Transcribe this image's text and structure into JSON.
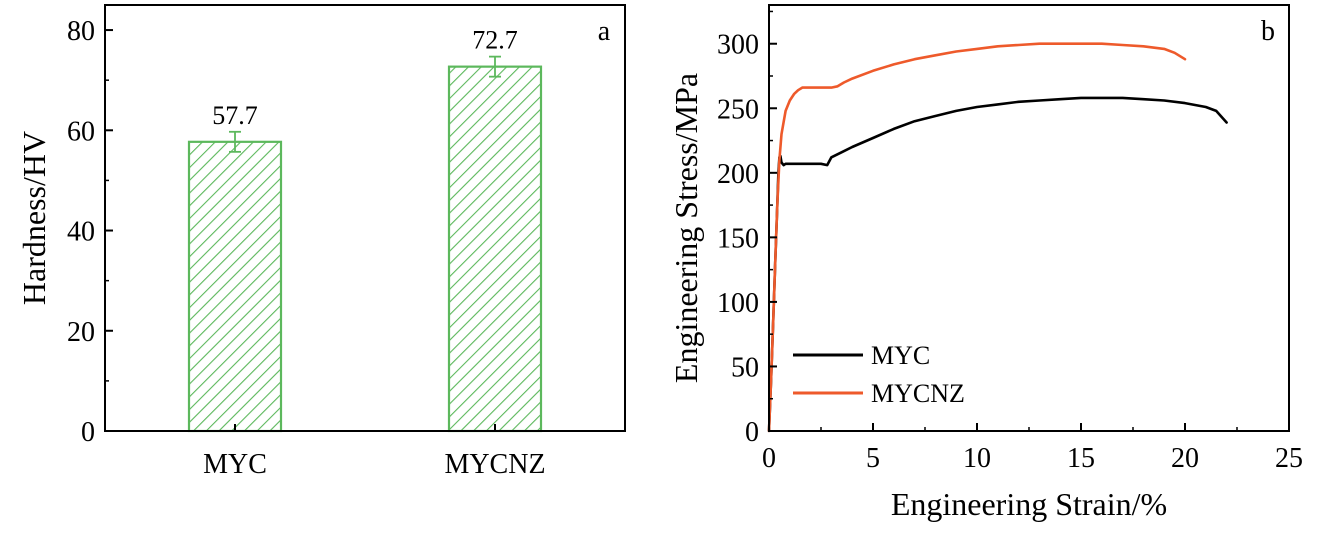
{
  "chart_data": [
    {
      "type": "bar",
      "panel_label": "a",
      "categories": [
        "MYC",
        "MYCNZ"
      ],
      "values": [
        57.7,
        72.7
      ],
      "errors": [
        2.0,
        2.0
      ],
      "data_labels": [
        "57.7",
        "72.7"
      ],
      "ylabel": "Hardness/HV",
      "ylim": [
        0,
        85
      ],
      "yticks": [
        0,
        20,
        40,
        60,
        80
      ],
      "ytick_labels": [
        "0",
        "20",
        "40",
        "60",
        "80"
      ],
      "bar_color": "#5cb85c",
      "bar_fill": "diagonal hatch"
    },
    {
      "type": "line",
      "panel_label": "b",
      "xlabel": "Engineering Strain/%",
      "ylabel": "Engineering Stress/MPa",
      "xlim": [
        0,
        25
      ],
      "ylim": [
        0,
        330
      ],
      "xticks": [
        0,
        5,
        10,
        15,
        20,
        25
      ],
      "xtick_labels": [
        "0",
        "5",
        "10",
        "15",
        "20",
        "25"
      ],
      "yticks": [
        0,
        50,
        100,
        150,
        200,
        250,
        300
      ],
      "ytick_labels": [
        "0",
        "50",
        "100",
        "150",
        "200",
        "250",
        "300"
      ],
      "legend_position": "bottom-left",
      "series": [
        {
          "name": "MYC",
          "color": "#000000",
          "x": [
            0,
            0.1,
            0.2,
            0.3,
            0.4,
            0.45,
            0.5,
            0.55,
            0.6,
            0.7,
            0.8,
            1.0,
            1.5,
            2.0,
            2.5,
            2.8,
            3.0,
            3.5,
            4,
            5,
            6,
            7,
            8,
            9,
            10,
            11,
            12,
            13,
            14,
            15,
            16,
            17,
            18,
            19,
            20,
            21,
            21.5,
            22
          ],
          "y": [
            0,
            40,
            85,
            130,
            175,
            200,
            212,
            213,
            208,
            206,
            207,
            207,
            207,
            207,
            207,
            206,
            212,
            216,
            220,
            227,
            234,
            240,
            244,
            248,
            251,
            253,
            255,
            256,
            257,
            258,
            258,
            258,
            257,
            256,
            254,
            251,
            248,
            239
          ]
        },
        {
          "name": "MYCNZ",
          "color": "#ee5a2b",
          "x": [
            0,
            0.1,
            0.2,
            0.3,
            0.4,
            0.5,
            0.6,
            0.8,
            1.0,
            1.2,
            1.4,
            1.6,
            2.0,
            2.5,
            3.0,
            3.3,
            3.6,
            4,
            5,
            6,
            7,
            8,
            9,
            10,
            11,
            12,
            13,
            14,
            15,
            16,
            17,
            18,
            19,
            19.5,
            20
          ],
          "y": [
            0,
            40,
            85,
            130,
            175,
            210,
            230,
            248,
            256,
            261,
            264,
            266,
            266,
            266,
            266,
            267,
            270,
            273,
            279,
            284,
            288,
            291,
            294,
            296,
            298,
            299,
            300,
            300,
            300,
            300,
            299,
            298,
            296,
            293,
            288
          ]
        }
      ]
    }
  ]
}
